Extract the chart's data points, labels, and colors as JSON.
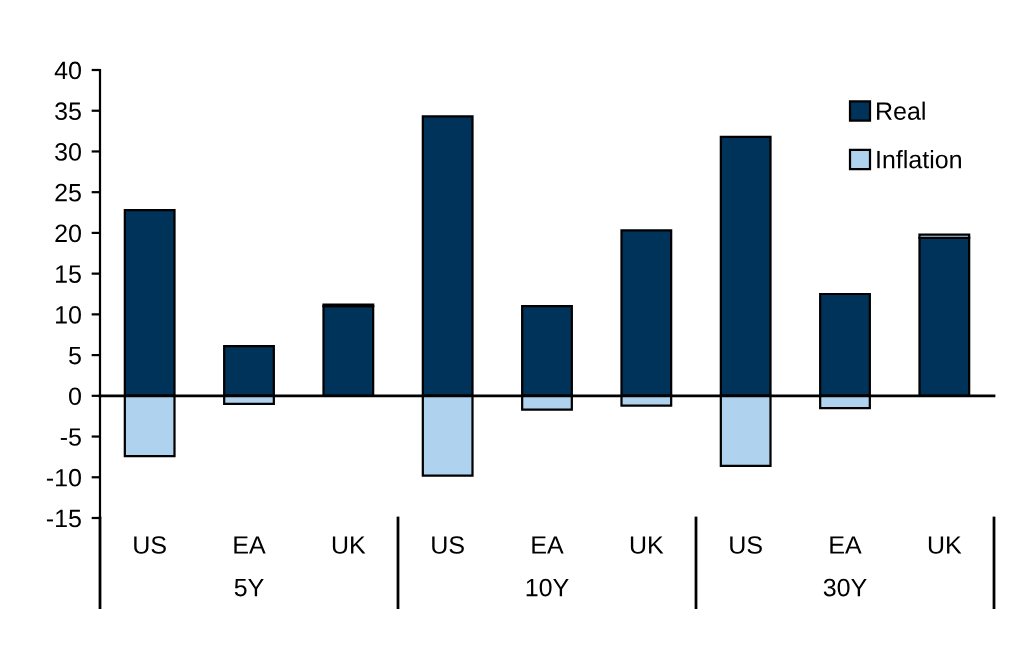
{
  "chart_data": {
    "type": "bar",
    "stacked": true,
    "categories": [
      "US",
      "EA",
      "UK",
      "US",
      "EA",
      "UK",
      "US",
      "EA",
      "UK"
    ],
    "annotations": [
      "5Y",
      "10Y",
      "30Y"
    ],
    "series": [
      {
        "name": "Real",
        "color": "#003359",
        "values": [
          22.8,
          6.1,
          11.0,
          34.3,
          11.0,
          20.3,
          31.8,
          12.5,
          19.4
        ]
      },
      {
        "name": "Inflation",
        "color": "#afd3ef",
        "values": [
          -7.4,
          -1.0,
          0.2,
          -9.8,
          -1.7,
          -1.2,
          -8.6,
          -1.5,
          0.4
        ]
      }
    ],
    "ylim": [
      -15,
      40
    ],
    "yticks": [
      -15,
      -10,
      -5,
      0,
      5,
      10,
      15,
      20,
      25,
      30,
      35,
      40
    ],
    "legend": "top right"
  }
}
